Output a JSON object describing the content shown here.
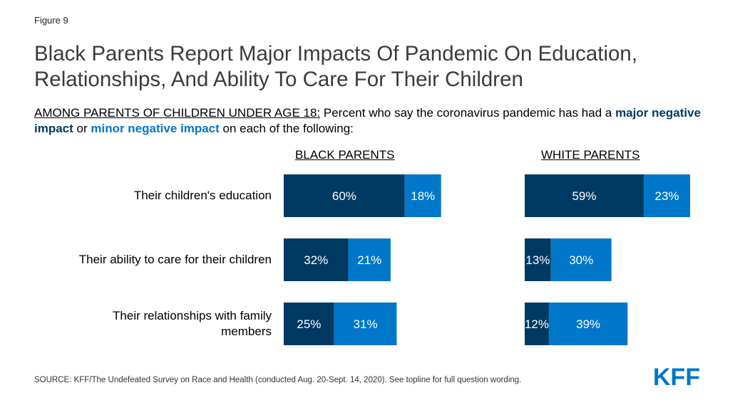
{
  "figure_label": "Figure 9",
  "title": "Black Parents Report Major Impacts Of Pandemic On Education, Relationships, And Ability To Care For Their Children",
  "subtitle": {
    "prefix": "AMONG PARENTS OF CHILDREN UNDER AGE 18:",
    "text1": " Percent who say the coronavirus pandemic has had a ",
    "major": "major negative impact",
    "text2": " or ",
    "minor": "minor negative impact",
    "text3": " on each of the following:"
  },
  "source": "SOURCE: KFF/The Undefeated Survey on Race and Health (conducted Aug. 20-Sept. 14, 2020). See topline for full question wording.",
  "logo_text": "KFF",
  "colors": {
    "major": "#003a63",
    "minor": "#0077c8",
    "label_text": "#ffffff"
  },
  "chart_data": {
    "type": "bar",
    "orientation": "horizontal",
    "stacked": true,
    "categories": [
      "Their children's education",
      "Their ability to care for their children",
      "Their relationships with family members"
    ],
    "panels": [
      {
        "title": "BLACK PARENTS",
        "series": [
          {
            "name": "major negative impact",
            "values": [
              60,
              32,
              25
            ]
          },
          {
            "name": "minor negative impact",
            "values": [
              18,
              21,
              31
            ]
          }
        ]
      },
      {
        "title": "WHITE PARENTS",
        "series": [
          {
            "name": "major negative impact",
            "values": [
              59,
              13,
              12
            ]
          },
          {
            "name": "minor negative impact",
            "values": [
              23,
              30,
              39
            ]
          }
        ]
      }
    ],
    "value_suffix": "%",
    "xlim": [
      0,
      100
    ],
    "grid": false,
    "legend": "inline in subtitle"
  }
}
